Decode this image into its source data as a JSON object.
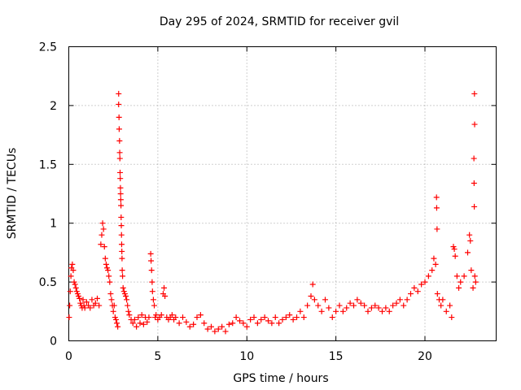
{
  "chart_data": {
    "type": "scatter",
    "title": "Day 295 of 2024, SRMTID for receiver gvil",
    "xlabel": "GPS time / hours",
    "ylabel": "SRMTID / TECUs",
    "xlim": [
      0,
      24
    ],
    "ylim": [
      0,
      2.5
    ],
    "x_ticks": [
      0,
      5,
      10,
      15,
      20
    ],
    "x_tick_labels": [
      "0",
      "5",
      "10",
      "15",
      "20"
    ],
    "y_ticks": [
      0,
      0.5,
      1,
      1.5,
      2,
      2.5
    ],
    "y_tick_labels": [
      "0",
      "0.5",
      "1",
      "1.5",
      "2",
      "2.5"
    ],
    "grid": true,
    "marker": "+",
    "series": [
      {
        "name": "SRMTID",
        "color": "#ff0000",
        "points": [
          [
            0.02,
            0.2
          ],
          [
            0.05,
            0.3
          ],
          [
            0.08,
            0.42
          ],
          [
            0.12,
            0.55
          ],
          [
            0.15,
            0.62
          ],
          [
            0.2,
            0.65
          ],
          [
            0.25,
            0.6
          ],
          [
            0.3,
            0.5
          ],
          [
            0.35,
            0.48
          ],
          [
            0.4,
            0.45
          ],
          [
            0.45,
            0.42
          ],
          [
            0.5,
            0.4
          ],
          [
            0.55,
            0.38
          ],
          [
            0.6,
            0.36
          ],
          [
            0.65,
            0.32
          ],
          [
            0.7,
            0.3
          ],
          [
            0.75,
            0.28
          ],
          [
            0.8,
            0.35
          ],
          [
            0.85,
            0.3
          ],
          [
            0.9,
            0.28
          ],
          [
            1.0,
            0.33
          ],
          [
            1.1,
            0.3
          ],
          [
            1.2,
            0.28
          ],
          [
            1.3,
            0.35
          ],
          [
            1.4,
            0.3
          ],
          [
            1.5,
            0.32
          ],
          [
            1.6,
            0.36
          ],
          [
            1.7,
            0.3
          ],
          [
            1.8,
            0.82
          ],
          [
            1.85,
            0.9
          ],
          [
            1.9,
            1.0
          ],
          [
            1.95,
            0.95
          ],
          [
            2.0,
            0.8
          ],
          [
            2.05,
            0.7
          ],
          [
            2.1,
            0.65
          ],
          [
            2.15,
            0.62
          ],
          [
            2.2,
            0.6
          ],
          [
            2.25,
            0.55
          ],
          [
            2.3,
            0.5
          ],
          [
            2.35,
            0.4
          ],
          [
            2.4,
            0.35
          ],
          [
            2.45,
            0.3
          ],
          [
            2.5,
            0.25
          ],
          [
            2.55,
            0.3
          ],
          [
            2.6,
            0.2
          ],
          [
            2.65,
            0.18
          ],
          [
            2.7,
            0.15
          ],
          [
            2.75,
            0.12
          ],
          [
            2.8,
            2.1
          ],
          [
            2.8,
            2.01
          ],
          [
            2.82,
            1.9
          ],
          [
            2.83,
            1.8
          ],
          [
            2.85,
            1.7
          ],
          [
            2.86,
            1.6
          ],
          [
            2.87,
            1.55
          ],
          [
            2.88,
            1.43
          ],
          [
            2.89,
            1.38
          ],
          [
            2.9,
            1.3
          ],
          [
            2.91,
            1.25
          ],
          [
            2.92,
            1.2
          ],
          [
            2.93,
            1.15
          ],
          [
            2.94,
            1.05
          ],
          [
            2.95,
            0.98
          ],
          [
            2.96,
            0.9
          ],
          [
            2.97,
            0.82
          ],
          [
            2.98,
            0.76
          ],
          [
            2.99,
            0.7
          ],
          [
            3.0,
            0.6
          ],
          [
            3.02,
            0.55
          ],
          [
            3.05,
            0.45
          ],
          [
            3.1,
            0.42
          ],
          [
            3.15,
            0.4
          ],
          [
            3.2,
            0.38
          ],
          [
            3.25,
            0.35
          ],
          [
            3.3,
            0.3
          ],
          [
            3.35,
            0.25
          ],
          [
            3.4,
            0.22
          ],
          [
            3.5,
            0.18
          ],
          [
            3.6,
            0.15
          ],
          [
            3.7,
            0.18
          ],
          [
            3.8,
            0.12
          ],
          [
            3.9,
            0.2
          ],
          [
            4.0,
            0.15
          ],
          [
            4.1,
            0.22
          ],
          [
            4.2,
            0.14
          ],
          [
            4.3,
            0.2
          ],
          [
            4.4,
            0.16
          ],
          [
            4.5,
            0.2
          ],
          [
            4.6,
            0.74
          ],
          [
            4.62,
            0.68
          ],
          [
            4.65,
            0.6
          ],
          [
            4.68,
            0.5
          ],
          [
            4.7,
            0.42
          ],
          [
            4.75,
            0.35
          ],
          [
            4.8,
            0.3
          ],
          [
            4.85,
            0.2
          ],
          [
            4.9,
            0.22
          ],
          [
            5.0,
            0.18
          ],
          [
            5.1,
            0.2
          ],
          [
            5.2,
            0.22
          ],
          [
            5.3,
            0.4
          ],
          [
            5.35,
            0.45
          ],
          [
            5.4,
            0.38
          ],
          [
            5.5,
            0.2
          ],
          [
            5.6,
            0.18
          ],
          [
            5.7,
            0.2
          ],
          [
            5.8,
            0.22
          ],
          [
            5.9,
            0.18
          ],
          [
            6.0,
            0.2
          ],
          [
            6.2,
            0.15
          ],
          [
            6.4,
            0.2
          ],
          [
            6.6,
            0.16
          ],
          [
            6.8,
            0.12
          ],
          [
            7.0,
            0.14
          ],
          [
            7.2,
            0.2
          ],
          [
            7.4,
            0.22
          ],
          [
            7.6,
            0.15
          ],
          [
            7.8,
            0.1
          ],
          [
            8.0,
            0.12
          ],
          [
            8.2,
            0.08
          ],
          [
            8.4,
            0.1
          ],
          [
            8.6,
            0.12
          ],
          [
            8.8,
            0.08
          ],
          [
            9.0,
            0.14
          ],
          [
            9.2,
            0.15
          ],
          [
            9.4,
            0.2
          ],
          [
            9.6,
            0.17
          ],
          [
            9.8,
            0.15
          ],
          [
            10.0,
            0.12
          ],
          [
            10.2,
            0.18
          ],
          [
            10.4,
            0.2
          ],
          [
            10.6,
            0.15
          ],
          [
            10.8,
            0.18
          ],
          [
            11.0,
            0.2
          ],
          [
            11.2,
            0.17
          ],
          [
            11.4,
            0.15
          ],
          [
            11.6,
            0.2
          ],
          [
            11.8,
            0.15
          ],
          [
            12.0,
            0.18
          ],
          [
            12.2,
            0.2
          ],
          [
            12.4,
            0.22
          ],
          [
            12.6,
            0.18
          ],
          [
            12.8,
            0.2
          ],
          [
            13.0,
            0.25
          ],
          [
            13.2,
            0.2
          ],
          [
            13.4,
            0.3
          ],
          [
            13.6,
            0.38
          ],
          [
            13.7,
            0.48
          ],
          [
            13.8,
            0.35
          ],
          [
            14.0,
            0.3
          ],
          [
            14.2,
            0.25
          ],
          [
            14.4,
            0.35
          ],
          [
            14.6,
            0.28
          ],
          [
            14.8,
            0.2
          ],
          [
            15.0,
            0.25
          ],
          [
            15.2,
            0.3
          ],
          [
            15.4,
            0.25
          ],
          [
            15.6,
            0.28
          ],
          [
            15.8,
            0.32
          ],
          [
            16.0,
            0.3
          ],
          [
            16.2,
            0.35
          ],
          [
            16.4,
            0.32
          ],
          [
            16.6,
            0.3
          ],
          [
            16.8,
            0.25
          ],
          [
            17.0,
            0.28
          ],
          [
            17.2,
            0.3
          ],
          [
            17.4,
            0.28
          ],
          [
            17.6,
            0.25
          ],
          [
            17.8,
            0.28
          ],
          [
            18.0,
            0.25
          ],
          [
            18.2,
            0.3
          ],
          [
            18.4,
            0.32
          ],
          [
            18.6,
            0.35
          ],
          [
            18.8,
            0.3
          ],
          [
            19.0,
            0.35
          ],
          [
            19.2,
            0.4
          ],
          [
            19.4,
            0.45
          ],
          [
            19.6,
            0.42
          ],
          [
            19.8,
            0.48
          ],
          [
            20.0,
            0.5
          ],
          [
            20.2,
            0.55
          ],
          [
            20.4,
            0.6
          ],
          [
            20.5,
            0.7
          ],
          [
            20.6,
            0.65
          ],
          [
            20.65,
            1.22
          ],
          [
            20.66,
            1.13
          ],
          [
            20.68,
            0.95
          ],
          [
            20.7,
            0.4
          ],
          [
            20.8,
            0.35
          ],
          [
            20.9,
            0.3
          ],
          [
            21.0,
            0.35
          ],
          [
            21.2,
            0.25
          ],
          [
            21.4,
            0.3
          ],
          [
            21.5,
            0.2
          ],
          [
            21.6,
            0.8
          ],
          [
            21.65,
            0.78
          ],
          [
            21.7,
            0.72
          ],
          [
            21.8,
            0.55
          ],
          [
            21.9,
            0.45
          ],
          [
            22.0,
            0.5
          ],
          [
            22.2,
            0.55
          ],
          [
            22.4,
            0.75
          ],
          [
            22.5,
            0.9
          ],
          [
            22.55,
            0.85
          ],
          [
            22.6,
            0.6
          ],
          [
            22.7,
            0.45
          ],
          [
            22.75,
            1.55
          ],
          [
            22.76,
            1.34
          ],
          [
            22.77,
            1.14
          ],
          [
            22.78,
            2.1
          ],
          [
            22.79,
            1.84
          ],
          [
            22.8,
            0.55
          ],
          [
            22.85,
            0.5
          ]
        ]
      }
    ]
  }
}
